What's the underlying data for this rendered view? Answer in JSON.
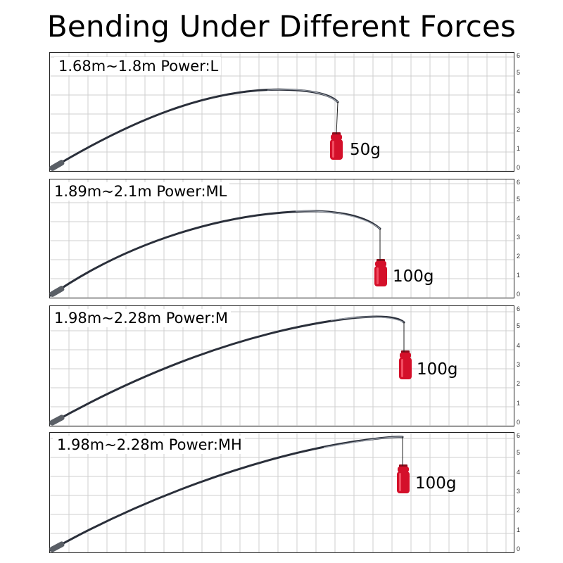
{
  "title": "Bending Under Different Forces",
  "colors": {
    "weight": "#d4102a",
    "rod": "#2a2f3a",
    "grid": "#cfcfcf"
  },
  "panels": [
    {
      "label": "1.68m~1.8m Power:L",
      "weight": "50g",
      "ticks": [
        "0",
        "1",
        "2",
        "3",
        "4",
        "5",
        "6"
      ]
    },
    {
      "label": "1.89m~2.1m Power:ML",
      "weight": "100g",
      "ticks": [
        "0",
        "1",
        "2",
        "3",
        "4",
        "5",
        "6"
      ]
    },
    {
      "label": "1.98m~2.28m Power:M",
      "weight": "100g",
      "ticks": [
        "0",
        "1",
        "2",
        "3",
        "4",
        "5",
        "6"
      ]
    },
    {
      "label": "1.98m~2.28m Power:MH",
      "weight": "100g",
      "ticks": [
        "0",
        "1",
        "2",
        "3",
        "4",
        "5",
        "6"
      ]
    }
  ]
}
